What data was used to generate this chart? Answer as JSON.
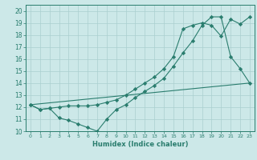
{
  "xlabel": "Humidex (Indice chaleur)",
  "bg_color": "#cce8e8",
  "line_color": "#2a7d6e",
  "grid_color": "#aacfcf",
  "xlim": [
    -0.5,
    23.5
  ],
  "ylim": [
    10,
    20.5
  ],
  "yticks": [
    10,
    11,
    12,
    13,
    14,
    15,
    16,
    17,
    18,
    19,
    20
  ],
  "xticks": [
    0,
    1,
    2,
    3,
    4,
    5,
    6,
    7,
    8,
    9,
    10,
    11,
    12,
    13,
    14,
    15,
    16,
    17,
    18,
    19,
    20,
    21,
    22,
    23
  ],
  "series": [
    {
      "x": [
        0,
        1,
        2,
        3,
        4,
        5,
        6,
        7,
        8,
        9,
        10,
        11,
        12,
        13,
        14,
        15,
        16,
        17,
        18,
        19,
        20,
        21,
        22,
        23
      ],
      "y": [
        12.2,
        11.8,
        11.9,
        11.1,
        10.9,
        10.6,
        10.3,
        10.0,
        11.0,
        11.8,
        12.2,
        12.8,
        13.3,
        13.8,
        14.4,
        15.4,
        16.5,
        17.5,
        18.8,
        19.5,
        19.5,
        16.2,
        15.2,
        14.0
      ],
      "marker": "D",
      "markersize": 2.2
    },
    {
      "x": [
        0,
        1,
        2,
        3,
        4,
        5,
        6,
        7,
        8,
        9,
        10,
        11,
        12,
        13,
        14,
        15,
        16,
        17,
        18,
        19,
        20,
        21,
        22,
        23
      ],
      "y": [
        12.2,
        11.8,
        11.9,
        12.0,
        12.1,
        12.1,
        12.1,
        12.2,
        12.4,
        12.6,
        13.0,
        13.5,
        14.0,
        14.5,
        15.2,
        16.2,
        18.5,
        18.8,
        19.0,
        18.8,
        17.9,
        19.3,
        18.9,
        19.5
      ],
      "marker": "D",
      "markersize": 2.2
    },
    {
      "x": [
        0,
        23
      ],
      "y": [
        12.2,
        14.0
      ],
      "marker": null,
      "markersize": 0
    }
  ]
}
